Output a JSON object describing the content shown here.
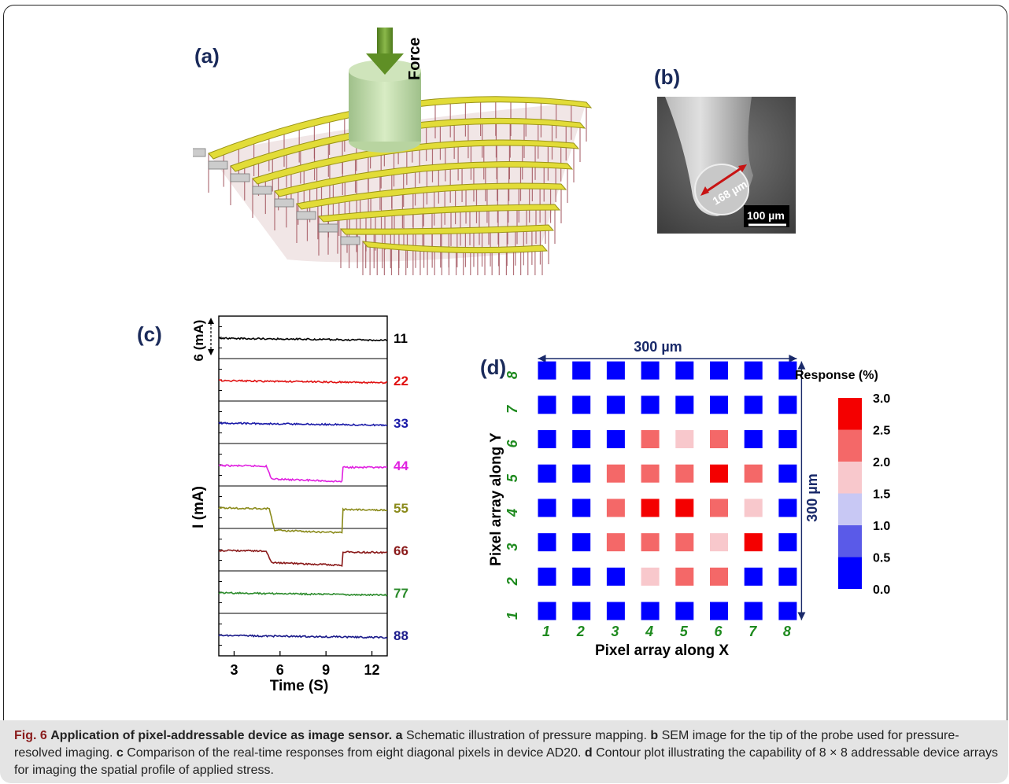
{
  "panels": {
    "a": {
      "label": "(a)",
      "force_label": "Force"
    },
    "b": {
      "label": "(b)",
      "diameter_label": "168 µm",
      "scale_bar_label": "100 µm"
    },
    "c": {
      "label": "(c)"
    },
    "d": {
      "label": "(d)",
      "width_label": "300 µm",
      "height_label": "300 µm"
    }
  },
  "chart_data": [
    {
      "type": "line",
      "panel": "c",
      "xlabel": "Time (S)",
      "ylabel": "I (mA)",
      "scale_bar_label": "6 (mA)",
      "xticks": [
        3,
        6,
        9,
        12
      ],
      "xlim": [
        2,
        13
      ],
      "series": [
        {
          "name": "11",
          "color": "#000000",
          "baseline": 0.0,
          "drop": 0.0,
          "start": 0,
          "end": 0
        },
        {
          "name": "22",
          "color": "#e01010",
          "baseline": 0.0,
          "drop": 0.0,
          "start": 0,
          "end": 0
        },
        {
          "name": "33",
          "color": "#1a1aa8",
          "baseline": 0.0,
          "drop": 0.0,
          "start": 0,
          "end": 0
        },
        {
          "name": "44",
          "color": "#e020e0",
          "baseline": 0.0,
          "drop": 5.0,
          "start": 5.1,
          "end": 10.1
        },
        {
          "name": "55",
          "color": "#8a8a1a",
          "baseline": 0.0,
          "drop": 8.5,
          "start": 5.3,
          "end": 10.1
        },
        {
          "name": "66",
          "color": "#8a1a1a",
          "baseline": 0.0,
          "drop": 4.5,
          "start": 5.1,
          "end": 10.1
        },
        {
          "name": "77",
          "color": "#2a8a2a",
          "baseline": 0.0,
          "drop": 0.0,
          "start": 0,
          "end": 0
        },
        {
          "name": "88",
          "color": "#1a1a8a",
          "baseline": 0.0,
          "drop": 0.0,
          "start": 0,
          "end": 0
        }
      ]
    },
    {
      "type": "heatmap",
      "panel": "d",
      "xlabel": "Pixel array along X",
      "ylabel": "Pixel array along Y",
      "x": [
        1,
        2,
        3,
        4,
        5,
        6,
        7,
        8
      ],
      "y": [
        1,
        2,
        3,
        4,
        5,
        6,
        7,
        8
      ],
      "colorbar_title": "Response (%)",
      "colorbar_ticks": [
        "0.0",
        "0.5",
        "1.0",
        "1.5",
        "2.0",
        "2.5",
        "3.0"
      ],
      "colorbar_colors": [
        "#0000ff",
        "#5a5ae8",
        "#c8c8f4",
        "#f8c8cc",
        "#f46868",
        "#f40000"
      ],
      "values": [
        [
          0,
          0,
          0,
          0,
          0,
          0,
          0,
          0
        ],
        [
          0,
          0,
          0,
          0,
          0,
          0,
          0,
          0
        ],
        [
          0,
          0,
          0,
          2.0,
          1.8,
          2.0,
          0,
          0
        ],
        [
          0,
          0,
          2.0,
          2.0,
          2.0,
          2.8,
          2.0,
          0
        ],
        [
          0,
          0,
          2.0,
          2.8,
          2.8,
          2.0,
          1.8,
          0
        ],
        [
          0,
          0,
          2.0,
          2.0,
          2.0,
          1.8,
          2.8,
          0
        ],
        [
          0,
          0,
          0,
          1.8,
          2.0,
          2.0,
          0,
          0
        ],
        [
          0,
          0,
          0,
          0,
          0,
          0,
          0,
          0
        ]
      ]
    }
  ],
  "caption": {
    "fig_label": "Fig. 6",
    "title": "Application of pixel-addressable device as image sensor.",
    "a_letter": "a",
    "a_text": "Schematic illustration of pressure mapping.",
    "b_letter": "b",
    "b_text": "SEM image for the tip of the probe used for pressure-resolved imaging.",
    "c_letter": "c",
    "c_text": "Comparison of the real-time responses from eight diagonal pixels in device AD20.",
    "d_letter": "d",
    "d_text": "Contour plot illustrating the capability of 8 × 8 addressable device arrays for imaging the spatial profile of applied stress."
  }
}
